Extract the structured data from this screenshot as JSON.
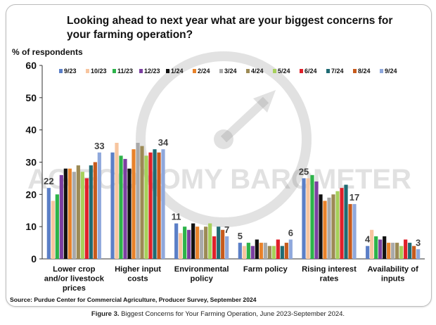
{
  "title": "Looking ahead to next year what are your biggest concerns for your farming operation?",
  "ylabel_text": "% of respondents",
  "source": "Source: Purdue Center for Commercial Agriculture, Producer Survey, September 2024",
  "caption_bold": "Figure 3.",
  "caption_text": " Biggest Concerns for Your Farming Operation, June 2023-September 2024.",
  "watermark_text": "AG ECONOMY BAROMETER",
  "chart_data": {
    "type": "bar",
    "title": "Looking ahead to next year what are your biggest concerns for your farming operation?",
    "xlabel": "",
    "ylabel": "% of respondents",
    "ylim": [
      0,
      60
    ],
    "yticks": [
      0,
      10,
      20,
      30,
      40,
      50,
      60
    ],
    "grid": false,
    "legend_position": "top",
    "categories": [
      "Lower crop and/or livestock prices",
      "Higher input costs",
      "Environmental policy",
      "Farm policy",
      "Rising interest rates",
      "Availability of inputs"
    ],
    "category_lines": [
      [
        "Lower crop",
        "and/or livestock",
        "prices"
      ],
      [
        "Higher input",
        "costs"
      ],
      [
        "Environmental",
        "policy"
      ],
      [
        "Farm policy"
      ],
      [
        "Rising interest",
        "rates"
      ],
      [
        "Availability of",
        "inputs"
      ]
    ],
    "series": [
      {
        "name": "9/23",
        "color": "#5b7fc7",
        "values": [
          22,
          33,
          11,
          5,
          25,
          4
        ]
      },
      {
        "name": "10/23",
        "color": "#f7c59f",
        "values": [
          18,
          36,
          8,
          4,
          25,
          9
        ]
      },
      {
        "name": "11/23",
        "color": "#2db34a",
        "values": [
          20,
          32,
          10,
          5,
          26,
          7
        ]
      },
      {
        "name": "12/23",
        "color": "#7b3fa0",
        "values": [
          26,
          31,
          9,
          4,
          24,
          6
        ]
      },
      {
        "name": "1/24",
        "color": "#111111",
        "values": [
          28,
          28,
          11,
          6,
          20,
          7
        ]
      },
      {
        "name": "2/24",
        "color": "#e8822a",
        "values": [
          28,
          34,
          10,
          5,
          18,
          5
        ]
      },
      {
        "name": "3/24",
        "color": "#a9a9a9",
        "values": [
          27,
          36,
          9,
          5,
          19,
          5
        ]
      },
      {
        "name": "4/24",
        "color": "#9c8a55",
        "values": [
          29,
          35,
          10,
          4,
          20,
          5
        ]
      },
      {
        "name": "5/24",
        "color": "#a6d05a",
        "values": [
          27,
          32,
          11,
          4,
          21,
          4
        ]
      },
      {
        "name": "6/24",
        "color": "#e0202a",
        "values": [
          25,
          33,
          7,
          6,
          22,
          6
        ]
      },
      {
        "name": "7/24",
        "color": "#1f6b73",
        "values": [
          29,
          34,
          10,
          4,
          23,
          5
        ]
      },
      {
        "name": "8/24",
        "color": "#c75a1c",
        "values": [
          30,
          33,
          9,
          5,
          17,
          4
        ]
      },
      {
        "name": "9/24",
        "color": "#8fa8dc",
        "values": [
          33,
          34,
          7,
          6,
          17,
          3
        ]
      }
    ],
    "data_labels": [
      {
        "category": 0,
        "series": 0,
        "text": "22"
      },
      {
        "category": 0,
        "series": 12,
        "text": "33"
      },
      {
        "category": 1,
        "series": 12,
        "text": "34"
      },
      {
        "category": 2,
        "series": 0,
        "text": "11"
      },
      {
        "category": 2,
        "series": 12,
        "text": "7"
      },
      {
        "category": 3,
        "series": 0,
        "text": "5"
      },
      {
        "category": 3,
        "series": 12,
        "text": "6"
      },
      {
        "category": 4,
        "series": 0,
        "text": "25"
      },
      {
        "category": 4,
        "series": 12,
        "text": "17"
      },
      {
        "category": 5,
        "series": 0,
        "text": "4"
      },
      {
        "category": 5,
        "series": 12,
        "text": "3"
      }
    ]
  }
}
